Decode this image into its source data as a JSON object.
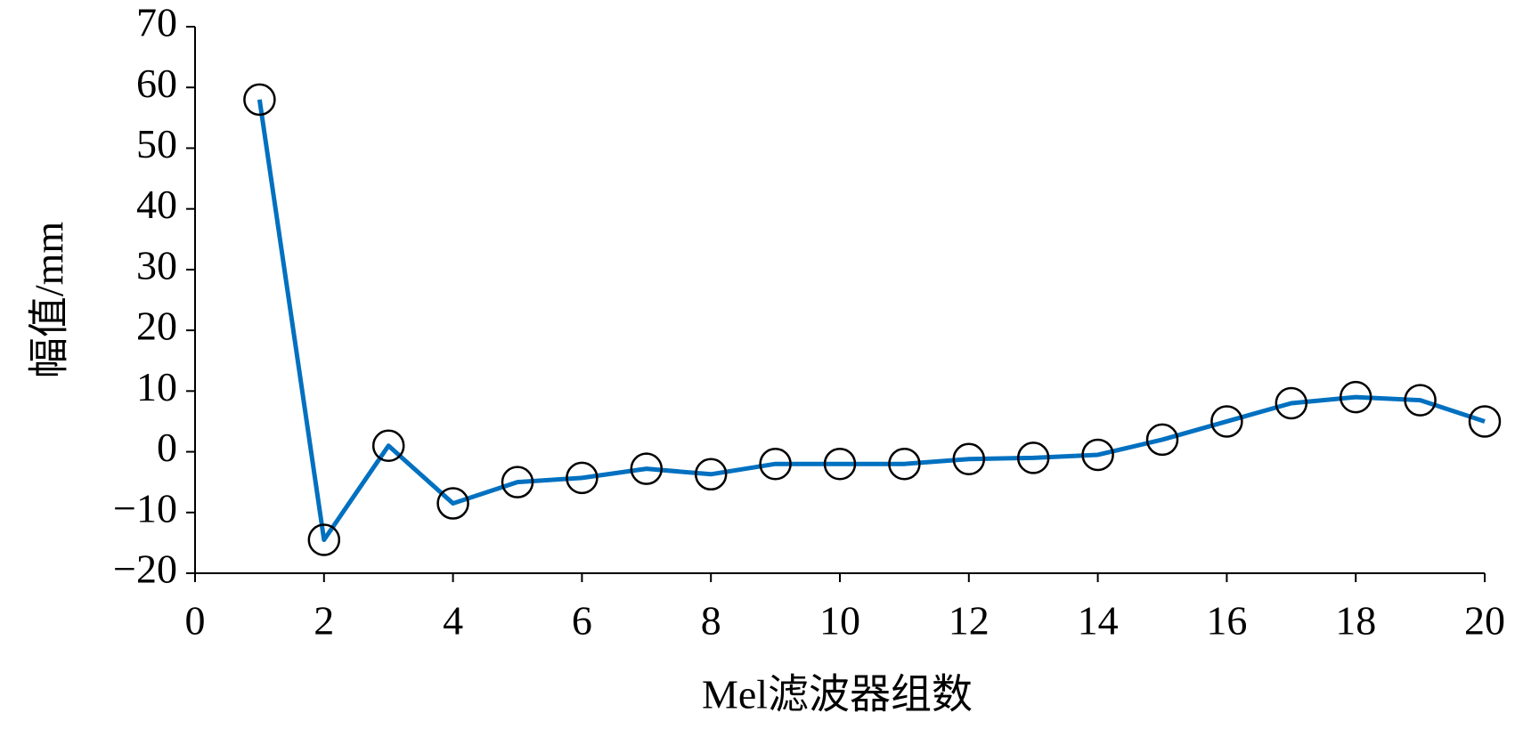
{
  "chart_data": {
    "type": "line",
    "x_label": "Mel滤波器组数",
    "y_label": "幅值/mm",
    "x": [
      1,
      2,
      3,
      4,
      5,
      6,
      7,
      8,
      9,
      10,
      11,
      12,
      13,
      14,
      15,
      16,
      17,
      18,
      19,
      20
    ],
    "series": [
      {
        "color": "#0070c0",
        "marker": "circle",
        "values": [
          58,
          -14.5,
          1,
          -8.5,
          -5,
          -4.3,
          -2.8,
          -3.7,
          -2,
          -2,
          -2,
          -1.2,
          -1,
          -0.5,
          2,
          5,
          8,
          9,
          8.5,
          5
        ]
      }
    ],
    "xlim": [
      0,
      20
    ],
    "xticks": [
      0,
      2,
      4,
      6,
      8,
      10,
      12,
      14,
      16,
      18,
      20
    ],
    "ylim": [
      -20,
      70
    ],
    "yticks": [
      {
        "value": -20,
        "label": "−20"
      },
      {
        "value": -10,
        "label": "−10"
      },
      0,
      10,
      20,
      30,
      40,
      50,
      60,
      70
    ],
    "grid": false
  }
}
